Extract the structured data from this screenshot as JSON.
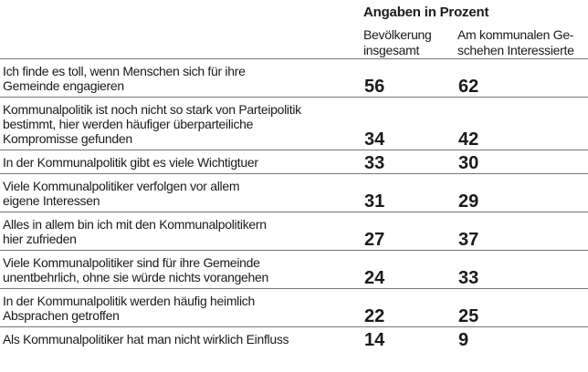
{
  "chart_data": {
    "type": "table",
    "unit_header": "Angaben in Prozent",
    "columns": [
      "Bevölkerung\ninsgesamt",
      "Am kommunalen Ge-\nschehen Interessierte"
    ],
    "rows": [
      {
        "statement": "Ich finde es toll, wenn Menschen sich für ihre\nGemeinde engagieren",
        "values": [
          56,
          62
        ]
      },
      {
        "statement": "Kommunalpolitik ist noch nicht so stark von Parteipolitik\nbestimmt, hier werden häufiger überparteiliche\nKompromisse gefunden",
        "values": [
          34,
          42
        ]
      },
      {
        "statement": "In der Kommunalpolitik gibt es viele Wichtigtuer",
        "values": [
          33,
          30
        ]
      },
      {
        "statement": "Viele Kommunalpolitiker verfolgen vor allem\neigene Interessen",
        "values": [
          31,
          29
        ]
      },
      {
        "statement": "Alles in allem bin ich mit den Kommunalpolitikern\nhier zufrieden",
        "values": [
          27,
          37
        ]
      },
      {
        "statement": "Viele Kommunalpolitiker sind für ihre Gemeinde\nunentbehrlich, ohne sie würde nichts vorangehen",
        "values": [
          24,
          33
        ]
      },
      {
        "statement": "In der Kommunalpolitik werden häufig heimlich\nAbsprachen getroffen",
        "values": [
          22,
          25
        ]
      },
      {
        "statement": "Als Kommunalpolitiker hat man nicht wirklich Einfluss",
        "values": [
          14,
          9
        ]
      }
    ]
  }
}
